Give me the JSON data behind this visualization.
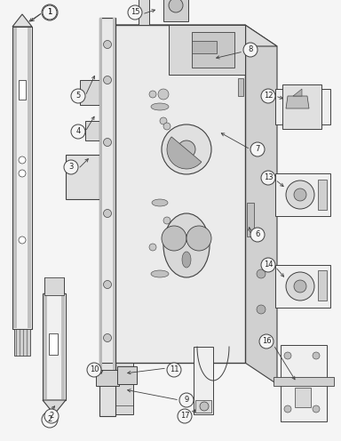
{
  "bg_color": "#f5f5f5",
  "line_color": "#404040",
  "label_color": "#222222",
  "figsize": [
    3.84,
    4.96
  ],
  "dpi": 100
}
